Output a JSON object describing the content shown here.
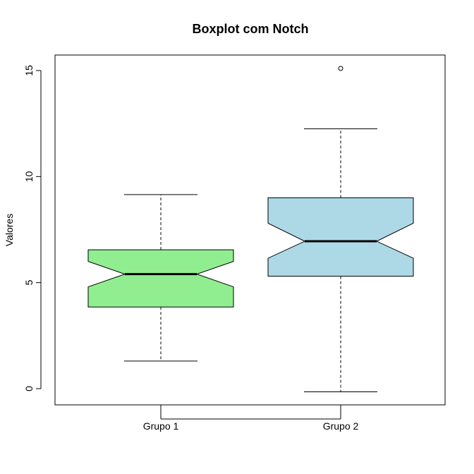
{
  "chart_data": {
    "type": "boxplot",
    "title": "Boxplot com Notch",
    "xlabel": "",
    "ylabel": "Valores",
    "ylim": [
      -0.8,
      15.7
    ],
    "yticks": [
      0,
      5,
      10,
      15
    ],
    "notch": true,
    "grid": false,
    "categories": [
      "Grupo 1",
      "Grupo 2"
    ],
    "series": [
      {
        "category": "Grupo 1",
        "color": "#90EE90",
        "whisker_low": 1.3,
        "q1": 3.85,
        "notch_low": 4.8,
        "median": 5.4,
        "notch_high": 6.0,
        "q3": 6.55,
        "whisker_high": 9.15,
        "outliers": []
      },
      {
        "category": "Grupo 2",
        "color": "#ADD8E6",
        "whisker_low": -0.15,
        "q1": 5.3,
        "notch_low": 6.15,
        "median": 6.95,
        "notch_high": 7.8,
        "q3": 9.0,
        "whisker_high": 12.25,
        "outliers": [
          15.1
        ]
      }
    ]
  }
}
